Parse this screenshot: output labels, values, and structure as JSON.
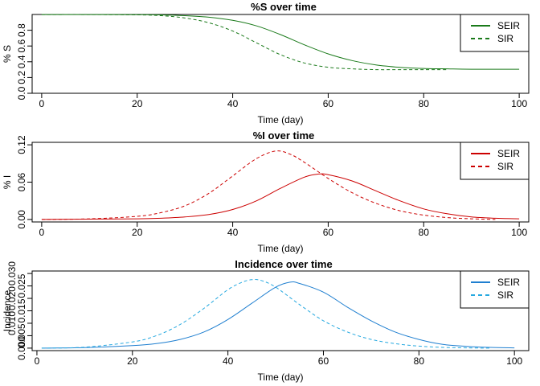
{
  "chart_data": [
    {
      "type": "line",
      "title": "%S over time",
      "xlabel": "Time (day)",
      "ylabel": "% S",
      "xlim": [
        -2,
        102
      ],
      "ylim": [
        0,
        1
      ],
      "xticks": [
        0,
        20,
        40,
        60,
        80,
        100
      ],
      "yticks": [
        0.0,
        0.2,
        0.4,
        0.6,
        0.8
      ],
      "ytick_labels": [
        "0.0",
        "0.2",
        "0.4",
        "0.6",
        "0.8"
      ],
      "color": "#1a7a1a",
      "legend_position": "top-right",
      "series": [
        {
          "name": "SEIR",
          "dash": false,
          "x": [
            0,
            10,
            20,
            25,
            30,
            35,
            40,
            45,
            50,
            55,
            60,
            65,
            70,
            75,
            80,
            85,
            90,
            100
          ],
          "y": [
            0.999,
            0.999,
            0.998,
            0.995,
            0.985,
            0.965,
            0.925,
            0.855,
            0.745,
            0.615,
            0.5,
            0.415,
            0.36,
            0.33,
            0.315,
            0.31,
            0.305,
            0.305
          ]
        },
        {
          "name": "SIR",
          "dash": true,
          "x": [
            0,
            10,
            20,
            25,
            30,
            35,
            40,
            45,
            50,
            55,
            60,
            65,
            70,
            75,
            80,
            85
          ],
          "y": [
            0.999,
            0.999,
            0.995,
            0.985,
            0.955,
            0.895,
            0.79,
            0.64,
            0.49,
            0.385,
            0.33,
            0.31,
            0.3,
            0.3,
            0.3,
            0.3
          ]
        }
      ]
    },
    {
      "type": "line",
      "title": "%I over time",
      "xlabel": "Time (day)",
      "ylabel": "% I",
      "xlim": [
        -2,
        102
      ],
      "ylim": [
        -0.004,
        0.124
      ],
      "xticks": [
        0,
        20,
        40,
        60,
        80,
        100
      ],
      "yticks": [
        0.0,
        0.06,
        0.12
      ],
      "ytick_labels": [
        "0.00",
        "0.06",
        "0.12"
      ],
      "color": "#cc0000",
      "legend_position": "top-right",
      "series": [
        {
          "name": "SEIR",
          "dash": false,
          "x": [
            0,
            10,
            20,
            25,
            30,
            35,
            40,
            45,
            50,
            55,
            58,
            60,
            65,
            70,
            75,
            80,
            85,
            90,
            95,
            100
          ],
          "y": [
            0.0,
            0.0005,
            0.001,
            0.002,
            0.004,
            0.008,
            0.016,
            0.03,
            0.05,
            0.068,
            0.073,
            0.072,
            0.062,
            0.046,
            0.03,
            0.017,
            0.009,
            0.004,
            0.002,
            0.001
          ]
        },
        {
          "name": "SIR",
          "dash": true,
          "x": [
            0,
            10,
            20,
            25,
            30,
            35,
            40,
            45,
            49,
            52,
            55,
            60,
            65,
            70,
            75,
            80,
            85,
            90,
            95
          ],
          "y": [
            0.0,
            0.001,
            0.005,
            0.011,
            0.022,
            0.042,
            0.07,
            0.098,
            0.11,
            0.105,
            0.092,
            0.066,
            0.043,
            0.026,
            0.014,
            0.007,
            0.003,
            0.001,
            0.0
          ]
        }
      ]
    },
    {
      "type": "line",
      "title": "Incidence over time",
      "xlabel": "Time (day)",
      "ylabel": "Incidence",
      "xlim": [
        -1,
        103
      ],
      "ylim": [
        -0.001,
        0.031
      ],
      "xticks": [
        0,
        20,
        40,
        60,
        80,
        100
      ],
      "yticks": [
        0.0,
        0.005,
        0.015,
        0.025
      ],
      "ytick_labels": [
        "0.000",
        "0.005",
        "0.015",
        "0.025"
      ],
      "secondary_ytick_labels": [
        "0.010",
        "0.020",
        "0.030"
      ],
      "color": "#1f7fd0",
      "color_dashed": "#26a9e0",
      "legend_position": "top-right",
      "series": [
        {
          "name": "SEIR",
          "dash": false,
          "x": [
            1,
            10,
            20,
            25,
            30,
            35,
            40,
            45,
            50,
            53,
            55,
            60,
            65,
            70,
            75,
            80,
            85,
            90,
            95,
            100
          ],
          "y": [
            0.0,
            0.0002,
            0.001,
            0.0018,
            0.0035,
            0.0065,
            0.0115,
            0.018,
            0.0245,
            0.0265,
            0.026,
            0.0225,
            0.0165,
            0.011,
            0.0065,
            0.0035,
            0.0015,
            0.0007,
            0.0003,
            0.0001
          ]
        },
        {
          "name": "SIR",
          "dash": true,
          "x": [
            1,
            10,
            20,
            25,
            30,
            35,
            40,
            43,
            45,
            47,
            50,
            55,
            60,
            65,
            70,
            75,
            80,
            85,
            90,
            95
          ],
          "y": [
            0.0,
            0.0004,
            0.0025,
            0.005,
            0.0095,
            0.016,
            0.0235,
            0.0265,
            0.0275,
            0.0272,
            0.0245,
            0.0175,
            0.011,
            0.0065,
            0.0035,
            0.0018,
            0.0008,
            0.0003,
            0.0001,
            0.0
          ]
        }
      ]
    }
  ]
}
